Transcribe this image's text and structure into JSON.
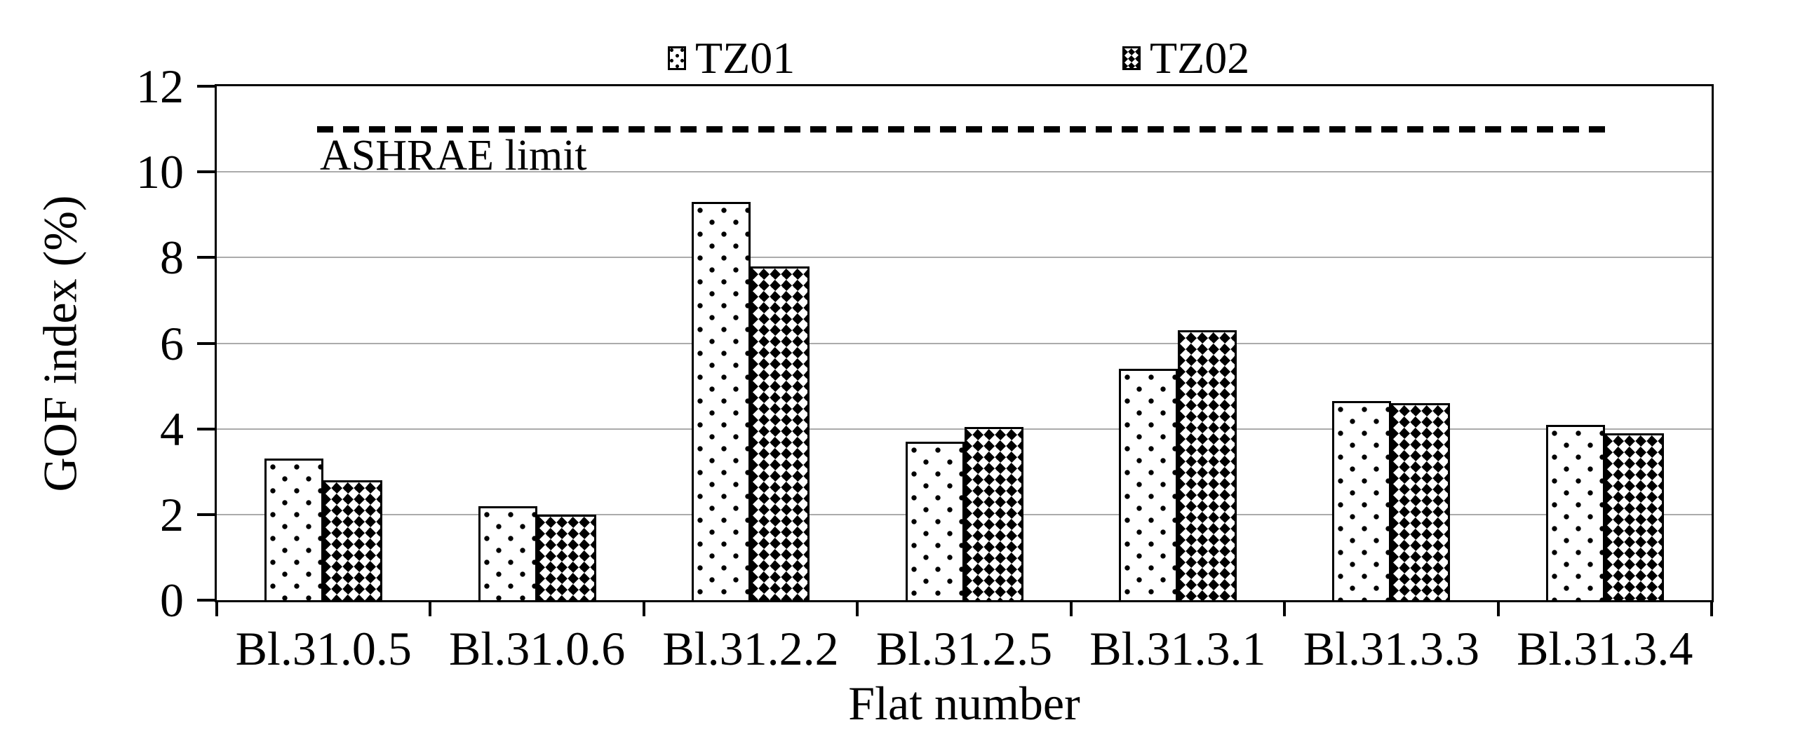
{
  "chart_data": {
    "type": "bar",
    "title": "",
    "categories": [
      "Bl.31.0.5",
      "Bl.31.0.6",
      "Bl.31.2.2",
      "Bl.31.2.5",
      "Bl.31.3.1",
      "Bl.31.3.3",
      "Bl.31.3.4"
    ],
    "series": [
      {
        "name": "TZ01",
        "pattern": "dots",
        "values": [
          3.3,
          2.2,
          9.3,
          3.7,
          5.4,
          4.65,
          4.1
        ]
      },
      {
        "name": "TZ02",
        "pattern": "checker",
        "values": [
          2.8,
          2.0,
          7.8,
          4.05,
          6.3,
          4.6,
          3.9
        ]
      }
    ],
    "xlabel": "Flat number",
    "ylabel": "GOF index (%)",
    "ylim": [
      0,
      12
    ],
    "yticks": [
      0,
      2,
      4,
      6,
      8,
      10,
      12
    ],
    "grid": "horizontal",
    "legend_position": "top-center",
    "reference_line": {
      "value": 11,
      "label": "ASHRAE limit",
      "style": "dashed"
    }
  },
  "colors": {
    "background": "#ffffff",
    "axis": "#000000",
    "gridline": "#ababab",
    "bar_border": "#000000",
    "tz01_fill": "#ffffff",
    "tz02_fill": "#000000",
    "text": "#000000"
  }
}
